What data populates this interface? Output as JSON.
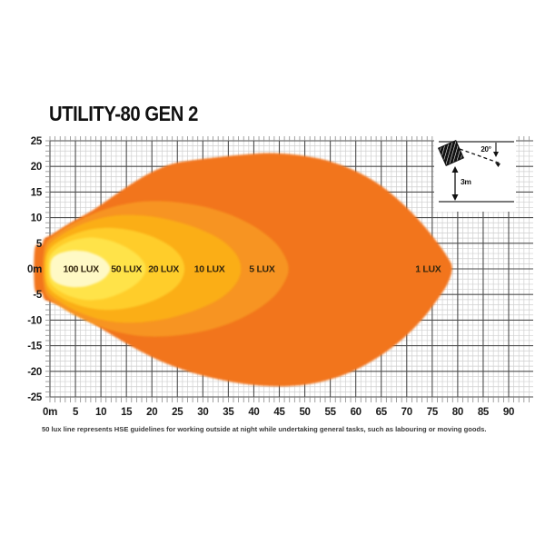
{
  "title": "UTILITY-80 GEN 2",
  "footnote": "50 lux line represents HSE guidelines for working outside at night while undertaking general tasks, such as labouring or moving goods.",
  "inset": {
    "angle_label": "20°",
    "height_label": "3m"
  },
  "colors": {
    "background": "#ffffff",
    "minor_grid": "#cfcfcf",
    "major_grid": "#4d4d4d",
    "tick": "#8a8a8a",
    "axis_label": "#1a1a1a",
    "zone_label": "#33260e",
    "inset_line": "#4d4d4d",
    "inset_ink": "#111111"
  },
  "chart_data": {
    "type": "area",
    "subtype": "isolux-beam-contour",
    "title": "UTILITY-80 GEN 2",
    "x_unit": "m",
    "y_unit": "m",
    "x_range": [
      0,
      90
    ],
    "y_range": [
      -25,
      25
    ],
    "grid": {
      "on": true,
      "minor_step_m": 1,
      "major_step_m": 5
    },
    "x_tick_labels": [
      "0m",
      "5",
      "10",
      "15",
      "20",
      "25",
      "30",
      "35",
      "40",
      "45",
      "50",
      "55",
      "60",
      "65",
      "70",
      "75",
      "80",
      "85",
      "90"
    ],
    "y_tick_labels": [
      "25",
      "20",
      "15",
      "10",
      "5",
      "0m",
      "-5",
      "-10",
      "-15",
      "-20",
      "-25"
    ],
    "zones": [
      {
        "label": "1 LUX",
        "lux": 1,
        "color": "#F2741B",
        "max_distance_m": 79,
        "max_half_width_m": 23,
        "label_pos": [
          74.2,
          0
        ],
        "outline": [
          [
            -3,
            3.9
          ],
          [
            -1.6,
            4.7
          ],
          [
            -1.1,
            5.9
          ],
          [
            0.5,
            6.8
          ],
          [
            4,
            9.0
          ],
          [
            8,
            11.2
          ],
          [
            12,
            13.9
          ],
          [
            16,
            16.6
          ],
          [
            20,
            18.9
          ],
          [
            24,
            20.5
          ],
          [
            28,
            21.2
          ],
          [
            33,
            21.8
          ],
          [
            38,
            22.3
          ],
          [
            43,
            22.6
          ],
          [
            48,
            22.3
          ],
          [
            53,
            21.5
          ],
          [
            57,
            20.3
          ],
          [
            61,
            18.6
          ],
          [
            65,
            16.2
          ],
          [
            69,
            12.9
          ],
          [
            72.5,
            9.4
          ],
          [
            75.5,
            5.8
          ],
          [
            77.8,
            2.6
          ],
          [
            78.9,
            0.2
          ],
          [
            78.0,
            -2.9
          ],
          [
            75.8,
            -6.3
          ],
          [
            73,
            -9.9
          ],
          [
            69.5,
            -13.4
          ],
          [
            65.5,
            -16.5
          ],
          [
            61,
            -19.2
          ],
          [
            56.5,
            -21.1
          ],
          [
            51.5,
            -22.4
          ],
          [
            46.5,
            -22.9
          ],
          [
            41.5,
            -22.8
          ],
          [
            36.5,
            -22.2
          ],
          [
            31.5,
            -21.2
          ],
          [
            26.5,
            -19.8
          ],
          [
            21.5,
            -17.9
          ],
          [
            16.5,
            -15.4
          ],
          [
            11.5,
            -12.5
          ],
          [
            7,
            -9.7
          ],
          [
            3.5,
            -7.7
          ],
          [
            0.5,
            -6.6
          ],
          [
            -1.1,
            -5.9
          ],
          [
            -1.6,
            -4.7
          ],
          [
            -3,
            -3.9
          ]
        ]
      },
      {
        "label": "5 LUX",
        "lux": 5,
        "color": "#F79420",
        "max_distance_m": 46.8,
        "max_half_width_m": 13.2,
        "label_pos": [
          41.6,
          0
        ],
        "outline": [
          [
            -0.5,
            5.4
          ],
          [
            3,
            8.0
          ],
          [
            7,
            10.1
          ],
          [
            11,
            11.7
          ],
          [
            15,
            12.7
          ],
          [
            19,
            13.2
          ],
          [
            24,
            13.1
          ],
          [
            29,
            12.4
          ],
          [
            33,
            11.4
          ],
          [
            37,
            9.9
          ],
          [
            41,
            7.7
          ],
          [
            44.3,
            5.0
          ],
          [
            46.2,
            2.2
          ],
          [
            46.8,
            0
          ],
          [
            46.2,
            -2.2
          ],
          [
            44.3,
            -5.0
          ],
          [
            41,
            -7.7
          ],
          [
            37,
            -9.9
          ],
          [
            33,
            -11.4
          ],
          [
            29,
            -12.4
          ],
          [
            24,
            -13.1
          ],
          [
            19,
            -13.2
          ],
          [
            15,
            -12.7
          ],
          [
            11,
            -11.7
          ],
          [
            7,
            -10.1
          ],
          [
            3,
            -8.0
          ],
          [
            -0.5,
            -5.4
          ],
          [
            -1.3,
            -2.6
          ],
          [
            -1.4,
            0
          ],
          [
            -1.3,
            2.6
          ]
        ]
      },
      {
        "label": "10 LUX",
        "lux": 10,
        "color": "#FBAE17",
        "max_distance_m": 37.3,
        "max_half_width_m": 10.5,
        "label_pos": [
          31.3,
          0
        ],
        "outline": [
          [
            -0.2,
            4.7
          ],
          [
            2.5,
            6.8
          ],
          [
            5.5,
            8.4
          ],
          [
            8.5,
            9.5
          ],
          [
            11.5,
            10.2
          ],
          [
            14.5,
            10.5
          ],
          [
            18,
            10.4
          ],
          [
            22,
            9.9
          ],
          [
            26,
            8.9
          ],
          [
            30,
            7.5
          ],
          [
            33.5,
            5.7
          ],
          [
            36,
            3.5
          ],
          [
            37.3,
            1.2
          ],
          [
            37.3,
            -1.2
          ],
          [
            36,
            -3.5
          ],
          [
            33.5,
            -5.7
          ],
          [
            30,
            -7.5
          ],
          [
            26,
            -8.9
          ],
          [
            22,
            -9.9
          ],
          [
            18,
            -10.4
          ],
          [
            14.5,
            -10.5
          ],
          [
            11.5,
            -10.2
          ],
          [
            8.5,
            -9.5
          ],
          [
            5.5,
            -8.4
          ],
          [
            2.5,
            -6.8
          ],
          [
            -0.2,
            -4.7
          ],
          [
            -1.0,
            -2.2
          ],
          [
            -1.1,
            0
          ],
          [
            -1.0,
            2.2
          ]
        ]
      },
      {
        "label": "20 LUX",
        "lux": 20,
        "color": "#FFCD2B",
        "max_distance_m": 26.4,
        "max_half_width_m": 8.0,
        "label_pos": [
          22.3,
          0
        ],
        "outline": [
          [
            0,
            3.9
          ],
          [
            2,
            5.5
          ],
          [
            4.5,
            6.7
          ],
          [
            7,
            7.5
          ],
          [
            9.5,
            7.9
          ],
          [
            12,
            8.0
          ],
          [
            15,
            7.7
          ],
          [
            18,
            7.0
          ],
          [
            21,
            5.9
          ],
          [
            23.8,
            4.3
          ],
          [
            25.7,
            2.3
          ],
          [
            26.4,
            0
          ],
          [
            25.7,
            -2.3
          ],
          [
            23.8,
            -4.3
          ],
          [
            21,
            -5.9
          ],
          [
            18,
            -7.0
          ],
          [
            15,
            -7.7
          ],
          [
            12,
            -8.0
          ],
          [
            9.5,
            -7.9
          ],
          [
            7,
            -7.5
          ],
          [
            4.5,
            -6.7
          ],
          [
            2,
            -5.5
          ],
          [
            0,
            -3.9
          ],
          [
            -0.8,
            -1.8
          ],
          [
            -0.8,
            1.8
          ]
        ]
      },
      {
        "label": "50 LUX",
        "lux": 50,
        "color": "#FFE349",
        "max_distance_m": 18.8,
        "max_half_width_m": 6.1,
        "label_pos": [
          15.0,
          0
        ],
        "outline": [
          [
            0.3,
            3.0
          ],
          [
            1.8,
            4.3
          ],
          [
            3.5,
            5.2
          ],
          [
            5.5,
            5.8
          ],
          [
            7.5,
            6.1
          ],
          [
            9.5,
            6.0
          ],
          [
            11.5,
            5.6
          ],
          [
            13.5,
            4.9
          ],
          [
            15.5,
            3.9
          ],
          [
            17.3,
            2.6
          ],
          [
            18.5,
            1.1
          ],
          [
            18.8,
            0
          ],
          [
            18.5,
            -1.1
          ],
          [
            17.3,
            -2.6
          ],
          [
            15.5,
            -3.9
          ],
          [
            13.5,
            -4.9
          ],
          [
            11.5,
            -5.6
          ],
          [
            9.5,
            -6.0
          ],
          [
            7.5,
            -6.1
          ],
          [
            5.5,
            -5.8
          ],
          [
            3.5,
            -5.2
          ],
          [
            1.8,
            -4.3
          ],
          [
            0.3,
            -3.0
          ],
          [
            -0.3,
            -1.4
          ],
          [
            -0.3,
            1.4
          ]
        ]
      },
      {
        "label": "100 LUX",
        "lux": 100,
        "color": "#FFF9C5",
        "max_distance_m": 11.8,
        "max_half_width_m": 3.6,
        "label_pos": [
          6.1,
          0
        ],
        "outline": [
          [
            0.6,
            2.2
          ],
          [
            1.6,
            2.9
          ],
          [
            2.8,
            3.3
          ],
          [
            4.2,
            3.55
          ],
          [
            5.6,
            3.55
          ],
          [
            7,
            3.4
          ],
          [
            8.4,
            3.0
          ],
          [
            9.8,
            2.4
          ],
          [
            10.9,
            1.6
          ],
          [
            11.6,
            0.7
          ],
          [
            11.8,
            0
          ],
          [
            11.6,
            -0.7
          ],
          [
            10.9,
            -1.6
          ],
          [
            9.8,
            -2.4
          ],
          [
            8.4,
            -3.0
          ],
          [
            7,
            -3.4
          ],
          [
            5.6,
            -3.55
          ],
          [
            4.2,
            -3.55
          ],
          [
            2.8,
            -3.3
          ],
          [
            1.6,
            -2.9
          ],
          [
            0.6,
            -2.2
          ],
          [
            0.1,
            -1.1
          ],
          [
            0.1,
            1.1
          ]
        ]
      }
    ],
    "inset": {
      "mounting_height_m": "3m",
      "tilt_angle_deg": "20°"
    }
  }
}
